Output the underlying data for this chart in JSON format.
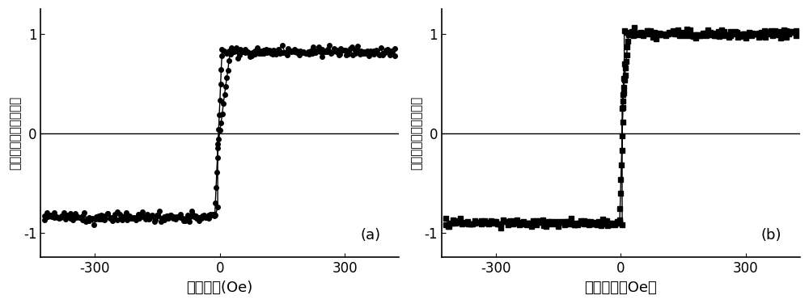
{
  "fig_width": 10.0,
  "fig_height": 3.76,
  "background_color": "#ffffff",
  "subplots": [
    {
      "label": "(a)",
      "xlabel": "磁场强度(Oe)",
      "ylabel": "归一化的饱和磁化强度",
      "xlim": [
        -430,
        430
      ],
      "ylim": [
        -1.25,
        1.25
      ],
      "xticks": [
        -300,
        0,
        300
      ],
      "yticks": [
        -1,
        0,
        1
      ],
      "marker": "o",
      "markersize": 4,
      "linewidth": 1.0,
      "color": "#000000",
      "branches": [
        {
          "x_flat_start": -420,
          "x_flat_end": -12,
          "y_flat": -0.84,
          "x_trans_start": -12,
          "x_trans_end": 5,
          "y_trans_start": -0.84,
          "y_trans_end": 0.78,
          "x_plat_start": 5,
          "x_plat_end": 420,
          "y_plat": 0.82,
          "noise_amp": 0.025
        },
        {
          "x_flat_start": 420,
          "x_flat_end": 25,
          "y_flat": 0.82,
          "x_trans_start": 25,
          "x_trans_end": -5,
          "y_trans_start": 0.82,
          "y_trans_end": -0.15,
          "x_plat_start": -5,
          "x_plat_end": -420,
          "y_plat": -0.84,
          "noise_amp": 0.025
        }
      ]
    },
    {
      "label": "(b)",
      "xlabel": "磁场强度（Oe）",
      "ylabel": "归一化的饱和磁化强度",
      "xlim": [
        -430,
        430
      ],
      "ylim": [
        -1.25,
        1.25
      ],
      "xticks": [
        -300,
        0,
        300
      ],
      "yticks": [
        -1,
        0,
        1
      ],
      "marker": "s",
      "markersize": 4,
      "linewidth": 1.0,
      "color": "#000000",
      "branches": [
        {
          "x_flat_start": -420,
          "x_flat_end": -3,
          "y_flat": -0.9,
          "x_trans_start": -3,
          "x_trans_end": 8,
          "y_trans_start": -0.9,
          "y_trans_end": 0.7,
          "x_plat_start": 8,
          "x_plat_end": 420,
          "y_plat": 1.0,
          "noise_amp": 0.02
        },
        {
          "x_flat_start": 420,
          "x_flat_end": 18,
          "y_flat": 1.0,
          "x_trans_start": 18,
          "x_trans_end": 3,
          "y_trans_start": 1.0,
          "y_trans_end": 0.25,
          "x_plat_start": 3,
          "x_plat_end": -420,
          "y_plat": -0.9,
          "noise_amp": 0.02
        }
      ]
    }
  ]
}
